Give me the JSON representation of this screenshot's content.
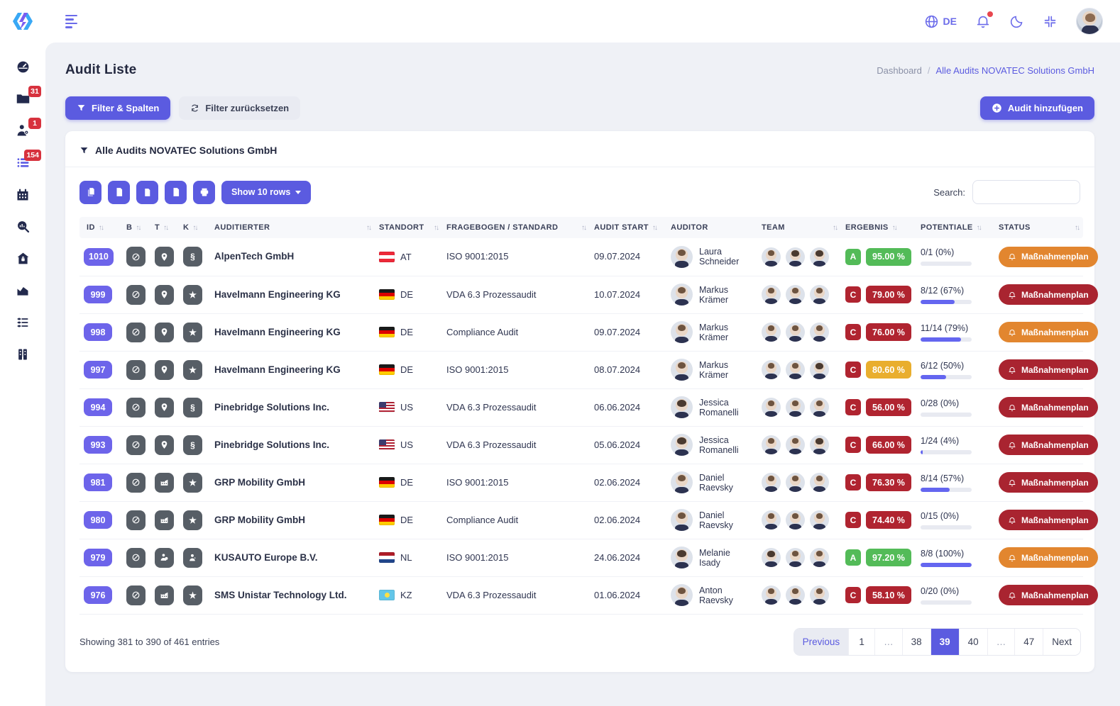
{
  "topbar": {
    "language": "DE",
    "icons": [
      "globe-icon",
      "bell-icon",
      "dark-mode-icon",
      "compress-icon"
    ],
    "has_notification_dot": true
  },
  "sidebar": {
    "items": [
      {
        "name": "dashboard",
        "icon": "gauge-icon",
        "badge": ""
      },
      {
        "name": "folders",
        "icon": "folder-icon",
        "badge": "31"
      },
      {
        "name": "users",
        "icon": "user-gear-icon",
        "badge": "1"
      },
      {
        "name": "audit-list",
        "icon": "list-icon",
        "badge": "154",
        "active": true
      },
      {
        "name": "calendar",
        "icon": "calendar-icon",
        "badge": ""
      },
      {
        "name": "search-analytics",
        "icon": "search-chart-icon",
        "badge": ""
      },
      {
        "name": "home-security",
        "icon": "home-lock-icon",
        "badge": ""
      },
      {
        "name": "reports",
        "icon": "area-chart-icon",
        "badge": ""
      },
      {
        "name": "checklists",
        "icon": "sliders-list-icon",
        "badge": ""
      },
      {
        "name": "archive",
        "icon": "building-icon",
        "badge": ""
      }
    ]
  },
  "page": {
    "title": "Audit Liste",
    "breadcrumb": {
      "parent": "Dashboard",
      "separator": "/",
      "current": "Alle Audits NOVATEC Solutions GmbH"
    },
    "filter_columns_button": "Filter & Spalten",
    "reset_filter_button": "Filter zurücksetzen",
    "add_audit_button": "Audit hinzufügen"
  },
  "card": {
    "filter_title": "Alle Audits NOVATEC Solutions GmbH",
    "export_buttons": [
      "copy-button",
      "pdf-button",
      "csv-button",
      "excel-button",
      "print-button"
    ],
    "show_rows_button": "Show 10 rows",
    "search_label": "Search:",
    "search_value": ""
  },
  "table": {
    "columns": [
      {
        "label": "ID",
        "sortable": true,
        "spread": false
      },
      {
        "label": "B",
        "sortable": true,
        "spread": false
      },
      {
        "label": "T",
        "sortable": true,
        "spread": false
      },
      {
        "label": "K",
        "sortable": true,
        "spread": false
      },
      {
        "label": "AUDITIERTER",
        "sortable": true,
        "spread": true
      },
      {
        "label": "STANDORT",
        "sortable": true,
        "spread": true
      },
      {
        "label": "FRAGEBOGEN / STANDARD",
        "sortable": true,
        "spread": true
      },
      {
        "label": "AUDIT START",
        "sortable": true,
        "spread": false
      },
      {
        "label": "AUDITOR",
        "sortable": false,
        "spread": false
      },
      {
        "label": "TEAM",
        "sortable": true,
        "spread": true
      },
      {
        "label": "ERGEBNIS",
        "sortable": true,
        "spread": false
      },
      {
        "label": "POTENTIALE",
        "sortable": true,
        "spread": false
      },
      {
        "label": "STATUS",
        "sortable": true,
        "spread": true
      }
    ],
    "rows": [
      {
        "id": "1010",
        "b_icon": "average-circle-icon",
        "t_icon": "location-pin-icon",
        "k_icon": "paragraph-icon",
        "company": "AlpenTech GmbH",
        "country": "AT",
        "standard": "ISO 9001:2015",
        "date": "09.07.2024",
        "auditor": "Laura Schneider",
        "auditor_gender": "m",
        "team": [
          "m",
          "f",
          "f"
        ],
        "grade": "A",
        "grade_level": "green",
        "score": "95.00 %",
        "score_level": "green",
        "potentials": "0/1 (0%)",
        "potentials_pct": 0,
        "status": "Maßnahmenplan",
        "status_level": "orange"
      },
      {
        "id": "999",
        "b_icon": "average-circle-icon",
        "t_icon": "location-pin-icon",
        "k_icon": "star-icon",
        "company": "Havelmann Engineering KG",
        "country": "DE",
        "standard": "VDA 6.3 Prozessaudit",
        "date": "10.07.2024",
        "auditor": "Markus Krämer",
        "auditor_gender": "m",
        "team": [
          "m",
          "m",
          "m"
        ],
        "grade": "C",
        "grade_level": "red",
        "score": "79.00 %",
        "score_level": "red",
        "potentials": "8/12 (67%)",
        "potentials_pct": 67,
        "status": "Maßnahmenplan",
        "status_level": "red"
      },
      {
        "id": "998",
        "b_icon": "average-circle-icon",
        "t_icon": "location-pin-icon",
        "k_icon": "star-icon",
        "company": "Havelmann Engineering KG",
        "country": "DE",
        "standard": "Compliance Audit",
        "date": "09.07.2024",
        "auditor": "Markus Krämer",
        "auditor_gender": "m",
        "team": [
          "m",
          "m",
          "m"
        ],
        "grade": "C",
        "grade_level": "red",
        "score": "76.00 %",
        "score_level": "red",
        "potentials": "11/14 (79%)",
        "potentials_pct": 79,
        "status": "Maßnahmenplan",
        "status_level": "orange"
      },
      {
        "id": "997",
        "b_icon": "average-circle-icon",
        "t_icon": "location-pin-icon",
        "k_icon": "star-icon",
        "company": "Havelmann Engineering KG",
        "country": "DE",
        "standard": "ISO 9001:2015",
        "date": "08.07.2024",
        "auditor": "Markus Krämer",
        "auditor_gender": "m",
        "team": [
          "m",
          "m",
          "f"
        ],
        "grade": "C",
        "grade_level": "red",
        "score": "80.60 %",
        "score_level": "amber",
        "potentials": "6/12 (50%)",
        "potentials_pct": 50,
        "status": "Maßnahmenplan",
        "status_level": "red"
      },
      {
        "id": "994",
        "b_icon": "average-circle-icon",
        "t_icon": "location-pin-icon",
        "k_icon": "paragraph-icon",
        "company": "Pinebridge Solutions Inc.",
        "country": "US",
        "standard": "VDA 6.3 Prozessaudit",
        "date": "06.06.2024",
        "auditor": "Jessica Romanelli",
        "auditor_gender": "f",
        "team": [
          "m",
          "m",
          "m"
        ],
        "grade": "C",
        "grade_level": "red",
        "score": "56.00 %",
        "score_level": "red",
        "potentials": "0/28 (0%)",
        "potentials_pct": 0,
        "status": "Maßnahmenplan",
        "status_level": "red"
      },
      {
        "id": "993",
        "b_icon": "average-circle-icon",
        "t_icon": "location-pin-icon",
        "k_icon": "paragraph-icon",
        "company": "Pinebridge Solutions Inc.",
        "country": "US",
        "standard": "VDA 6.3 Prozessaudit",
        "date": "05.06.2024",
        "auditor": "Jessica Romanelli",
        "auditor_gender": "f",
        "team": [
          "m",
          "m",
          "f"
        ],
        "grade": "C",
        "grade_level": "red",
        "score": "66.00 %",
        "score_level": "red",
        "potentials": "1/24 (4%)",
        "potentials_pct": 4,
        "status": "Maßnahmenplan",
        "status_level": "red"
      },
      {
        "id": "981",
        "b_icon": "average-circle-icon",
        "t_icon": "factory-icon",
        "k_icon": "star-icon",
        "company": "GRP Mobility GmbH",
        "country": "DE",
        "standard": "ISO 9001:2015",
        "date": "02.06.2024",
        "auditor": "Daniel Raevsky",
        "auditor_gender": "m",
        "team": [
          "m",
          "m",
          "m"
        ],
        "grade": "C",
        "grade_level": "red",
        "score": "76.30 %",
        "score_level": "red",
        "potentials": "8/14 (57%)",
        "potentials_pct": 57,
        "status": "Maßnahmenplan",
        "status_level": "red"
      },
      {
        "id": "980",
        "b_icon": "average-circle-icon",
        "t_icon": "factory-icon",
        "k_icon": "star-icon",
        "company": "GRP Mobility GmbH",
        "country": "DE",
        "standard": "Compliance Audit",
        "date": "02.06.2024",
        "auditor": "Daniel Raevsky",
        "auditor_gender": "m",
        "team": [
          "m",
          "m",
          "m"
        ],
        "grade": "C",
        "grade_level": "red",
        "score": "74.40 %",
        "score_level": "red",
        "potentials": "0/15 (0%)",
        "potentials_pct": 0,
        "status": "Maßnahmenplan",
        "status_level": "red"
      },
      {
        "id": "979",
        "b_icon": "average-circle-icon",
        "t_icon": "user-gear-icon",
        "k_icon": "user-star-icon",
        "company": "KUSAUTO Europe B.V.",
        "country": "NL",
        "standard": "ISO 9001:2015",
        "date": "24.06.2024",
        "auditor": "Melanie Isady",
        "auditor_gender": "f",
        "team": [
          "f",
          "m",
          "m"
        ],
        "grade": "A",
        "grade_level": "green",
        "score": "97.20 %",
        "score_level": "green",
        "potentials": "8/8 (100%)",
        "potentials_pct": 100,
        "status": "Maßnahmenplan",
        "status_level": "orange"
      },
      {
        "id": "976",
        "b_icon": "average-circle-icon",
        "t_icon": "factory-icon",
        "k_icon": "star-icon",
        "company": "SMS Unistar Technology Ltd.",
        "country": "KZ",
        "standard": "VDA 6.3 Prozessaudit",
        "date": "01.06.2024",
        "auditor": "Anton Raevsky",
        "auditor_gender": "m",
        "team": [
          "m",
          "m",
          "m"
        ],
        "grade": "C",
        "grade_level": "red",
        "score": "58.10 %",
        "score_level": "red",
        "potentials": "0/20 (0%)",
        "potentials_pct": 0,
        "status": "Maßnahmenplan",
        "status_level": "red"
      }
    ]
  },
  "footer": {
    "showing_text": "Showing 381 to 390 of 461 entries",
    "pagination": [
      {
        "label": "Previous",
        "type": "prev"
      },
      {
        "label": "1",
        "type": "page"
      },
      {
        "label": "…",
        "type": "dots"
      },
      {
        "label": "38",
        "type": "page"
      },
      {
        "label": "39",
        "type": "active"
      },
      {
        "label": "40",
        "type": "page"
      },
      {
        "label": "…",
        "type": "dots"
      },
      {
        "label": "47",
        "type": "page"
      },
      {
        "label": "Next",
        "type": "next"
      }
    ]
  },
  "colors": {
    "primary": "#5b5be0",
    "id_badge": "#6d64ea",
    "badge_red": "#d7323e",
    "grade_green": "#53bb58",
    "grade_red": "#b02430",
    "score_amber": "#e9ae2e",
    "status_orange": "#e2862f",
    "status_red": "#a92430",
    "progress_fill": "#6466f0"
  }
}
